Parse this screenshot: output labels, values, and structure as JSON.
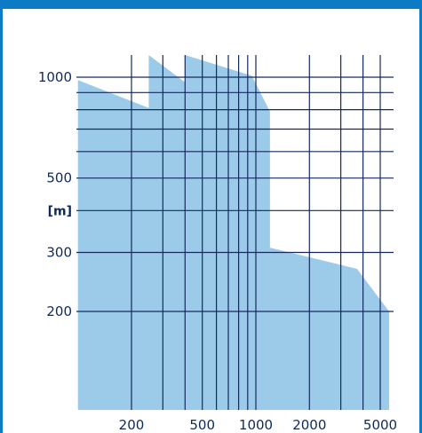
{
  "chart_data": {
    "type": "area",
    "title": "",
    "xlabel": "",
    "ylabel": "[m]",
    "x_scale": "log",
    "y_scale": "log",
    "xlim": [
      100,
      6000
    ],
    "ylim": [
      100,
      1300
    ],
    "grid": true,
    "legend": "none",
    "colors": {
      "area": "#9ccbea",
      "grid": "#14295e",
      "text": "#0e2a5a",
      "border": "#0c7ac4"
    },
    "x_grid_values": [
      200,
      300,
      400,
      500,
      600,
      700,
      800,
      900,
      1000,
      2000,
      3000,
      4000,
      5000
    ],
    "y_grid_values": [
      200,
      300,
      400,
      500,
      600,
      700,
      800,
      900,
      1000
    ],
    "x_tick_labels": [
      {
        "value": 200,
        "label": "200"
      },
      {
        "value": 500,
        "label": "500"
      },
      {
        "value": 1000,
        "label": "1000"
      },
      {
        "value": 2000,
        "label": "2000"
      },
      {
        "value": 5000,
        "label": "5000"
      }
    ],
    "y_tick_labels": [
      {
        "value": 1000,
        "label": "1000"
      },
      {
        "value": 500,
        "label": "500"
      },
      {
        "value": 300,
        "label": "300"
      },
      {
        "value": 200,
        "label": "200"
      }
    ],
    "x": [
      100,
      250,
      250,
      400,
      400,
      950,
      1200,
      1200,
      3700,
      5800
    ],
    "y": [
      980,
      810,
      1220,
      965,
      1230,
      1010,
      790,
      310,
      268,
      200
    ]
  }
}
